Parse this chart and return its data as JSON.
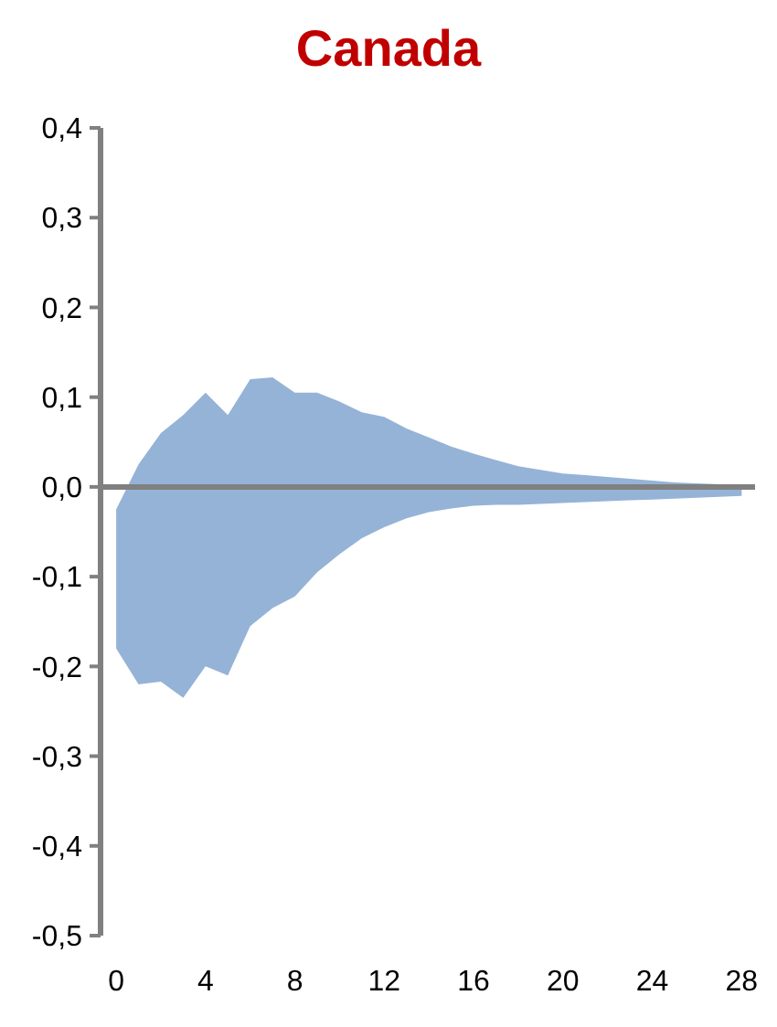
{
  "chart_data": {
    "type": "area",
    "title": "Canada",
    "x": [
      0,
      1,
      2,
      3,
      4,
      5,
      6,
      7,
      8,
      9,
      10,
      11,
      12,
      13,
      14,
      15,
      16,
      17,
      18,
      19,
      20,
      21,
      22,
      23,
      24,
      25,
      26,
      27,
      28
    ],
    "series": [
      {
        "color": "#95b3d7",
        "values": [
          null,
          null,
          null,
          null,
          null,
          null,
          null,
          null,
          null,
          null,
          null,
          null,
          null,
          null,
          null,
          null,
          null,
          null,
          null,
          null,
          null,
          null,
          null,
          null,
          null,
          null,
          null,
          null,
          null
        ],
        "upper": [
          -0.025,
          0.025,
          0.06,
          0.08,
          0.105,
          0.08,
          0.12,
          0.122,
          0.105,
          0.105,
          0.095,
          0.083,
          0.078,
          0.065,
          0.055,
          0.045,
          0.037,
          0.03,
          0.023,
          0.019,
          0.015,
          0.013,
          0.011,
          0.009,
          0.007,
          0.005,
          0.004,
          0.003,
          0.002
        ],
        "lower": [
          -0.18,
          -0.22,
          -0.217,
          -0.235,
          -0.2,
          -0.21,
          -0.155,
          -0.135,
          -0.122,
          -0.095,
          -0.075,
          -0.057,
          -0.045,
          -0.035,
          -0.028,
          -0.024,
          -0.021,
          -0.02,
          -0.02,
          -0.019,
          -0.018,
          -0.017,
          -0.016,
          -0.015,
          -0.014,
          -0.013,
          -0.012,
          -0.011,
          -0.01
        ]
      }
    ],
    "xlim": [
      -0.7,
      28.6
    ],
    "xticks": [
      0,
      4,
      8,
      12,
      16,
      20,
      24,
      28
    ],
    "ylim": [
      -0.5,
      0.4
    ],
    "yticks": [
      {
        "value": -0.5,
        "label": "-0,5"
      },
      {
        "value": -0.4,
        "label": "-0,4"
      },
      {
        "value": -0.3,
        "label": "-0,3"
      },
      {
        "value": -0.2,
        "label": "-0,2"
      },
      {
        "value": -0.1,
        "label": "-0,1"
      },
      {
        "value": 0,
        "label": "0,0"
      },
      {
        "value": 0.1,
        "label": "0,1"
      },
      {
        "value": 0.2,
        "label": "0,2"
      },
      {
        "value": 0.3,
        "label": "0,3"
      },
      {
        "value": 0.4,
        "label": "0,4"
      }
    ],
    "ref_lines": [
      {
        "axis": "y",
        "value": 0,
        "color": "#808080"
      }
    ],
    "grid": false
  }
}
